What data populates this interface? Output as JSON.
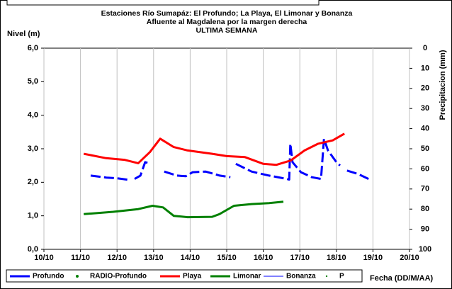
{
  "chart_data": {
    "type": "line",
    "title": "Estaciones Río Sumapáz: El Profundo; La Playa, El Limonar y Bonanza",
    "subtitle": "Afluente al Magdalena por la margen derecha",
    "subtitle2": "ULTIMA SEMANA",
    "y_label": "Nivel (m)",
    "y2_label": "Precipitacion (mm)",
    "x_label": "Fecha (DD/M/AA)",
    "xlim": [
      10,
      20
    ],
    "xticks": [
      {
        "value": 10,
        "label": "10/10"
      },
      {
        "value": 11,
        "label": "11/10"
      },
      {
        "value": 12,
        "label": "12/10"
      },
      {
        "value": 13,
        "label": "13/10"
      },
      {
        "value": 14,
        "label": "14/10"
      },
      {
        "value": 15,
        "label": "15/10"
      },
      {
        "value": 16,
        "label": "16/10"
      },
      {
        "value": 17,
        "label": "17/10"
      },
      {
        "value": 18,
        "label": "18/10"
      },
      {
        "value": 19,
        "label": "19/10"
      },
      {
        "value": 20,
        "label": "20/10"
      }
    ],
    "ylim": [
      0,
      6
    ],
    "yticks": [
      {
        "value": 0,
        "label": "0,0"
      },
      {
        "value": 1,
        "label": "1,0"
      },
      {
        "value": 2,
        "label": "2,0"
      },
      {
        "value": 3,
        "label": "3,0"
      },
      {
        "value": 4,
        "label": "4,0"
      },
      {
        "value": 5,
        "label": "5,0"
      },
      {
        "value": 6,
        "label": "6,0"
      }
    ],
    "y2lim": [
      100,
      0
    ],
    "y2ticks": [
      0,
      10,
      20,
      30,
      40,
      50,
      60,
      70,
      80,
      90,
      100
    ],
    "grid": "x",
    "series": [
      {
        "name": "Profundo",
        "color": "#0000ff",
        "width": 3,
        "dashed": true,
        "marker": "line",
        "x": [
          11.28,
          11.71,
          12.0,
          12.34,
          12.45,
          12.48,
          12.64,
          12.77,
          12.91,
          13.1,
          13.29,
          13.64,
          13.88,
          14.07,
          14.42,
          14.81,
          15.1,
          15.15,
          15.25,
          15.68,
          16.16,
          16.65,
          16.71,
          16.74,
          16.8,
          17.03,
          17.33,
          17.58,
          17.66,
          17.77,
          18.0,
          18.1,
          18.2,
          18.29,
          18.59,
          18.88
        ],
        "values": [
          2.2,
          2.14,
          2.12,
          2.07,
          null,
          2.1,
          2.2,
          2.6,
          2.55,
          null,
          2.32,
          2.2,
          2.18,
          2.3,
          2.32,
          2.2,
          2.15,
          null,
          2.55,
          2.32,
          2.2,
          2.1,
          2.08,
          3.15,
          2.6,
          2.3,
          2.15,
          2.1,
          3.3,
          2.95,
          2.6,
          2.5,
          null,
          2.35,
          2.25,
          2.1
        ]
      },
      {
        "name": "RADIO-Profundo",
        "color": "#008000",
        "marker": "dot",
        "x": [],
        "values": []
      },
      {
        "name": "Playa",
        "color": "#ff0000",
        "width": 3,
        "marker": "line",
        "x": [
          11.09,
          11.7,
          12.2,
          12.58,
          12.9,
          13.18,
          13.55,
          13.93,
          14.6,
          15.0,
          15.5,
          16.0,
          16.36,
          16.75,
          17.13,
          17.5,
          17.9,
          18.22
        ],
        "values": [
          2.85,
          2.72,
          2.67,
          2.57,
          2.9,
          3.3,
          3.05,
          2.95,
          2.85,
          2.78,
          2.75,
          2.55,
          2.52,
          2.65,
          2.95,
          3.15,
          3.25,
          3.45
        ]
      },
      {
        "name": "Limonar",
        "color": "#008000",
        "width": 3,
        "marker": "line",
        "x": [
          11.09,
          11.9,
          12.58,
          12.97,
          13.26,
          13.55,
          13.93,
          14.6,
          14.8,
          15.2,
          15.68,
          16.16,
          16.55
        ],
        "values": [
          1.05,
          1.12,
          1.2,
          1.3,
          1.25,
          1.0,
          0.96,
          0.97,
          1.05,
          1.3,
          1.35,
          1.38,
          1.42
        ]
      },
      {
        "name": "Bonanza",
        "color": "#0000ff",
        "width": 1,
        "marker": "line",
        "x": [],
        "values": []
      },
      {
        "name": "P",
        "color": "#008000",
        "marker": "dot",
        "x": [],
        "values": []
      }
    ]
  }
}
